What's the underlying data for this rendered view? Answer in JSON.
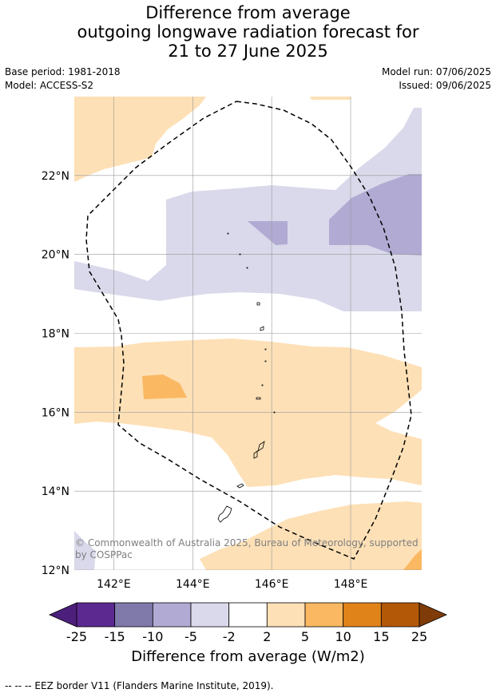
{
  "title": {
    "line1": "Difference from average",
    "line2": "outgoing longwave radiation forecast for",
    "line3": "21 to 27 June 2025"
  },
  "meta": {
    "base_period": "Base period: 1981-2018",
    "model": "Model: ACCESS-S2",
    "model_run": "Model run: 07/06/2025",
    "issued": "Issued: 09/06/2025"
  },
  "map": {
    "lat_ticks": [
      "22°N",
      "20°N",
      "18°N",
      "16°N",
      "14°N",
      "12°N"
    ],
    "lon_ticks": [
      "142°E",
      "144°E",
      "146°E",
      "148°E"
    ],
    "lat_range": [
      12,
      24
    ],
    "lon_range": [
      141,
      149.8
    ],
    "copyright": "© Commonwealth of Australia 2025, Bureau of Meteorology, supported by COSPPac",
    "region_colors": {
      "pos_2_5": "#fde0b6",
      "pos_5_10": "#fbb862",
      "neg_5_2": "#d9d9eb",
      "neg_10_5": "#b1aad3",
      "land_outline": "#000000",
      "eez_border": "#000000",
      "grid": "#999999"
    }
  },
  "colorbar": {
    "ticks": [
      "-25",
      "-15",
      "-10",
      "-5",
      "-2",
      "2",
      "5",
      "10",
      "15",
      "25"
    ],
    "colors": [
      "#4d1f7c",
      "#5b2990",
      "#807aab",
      "#b1aad3",
      "#d9d9eb",
      "#ffffff",
      "#fde0b6",
      "#fbb862",
      "#e0841a",
      "#b35806",
      "#7f3b08"
    ],
    "label": "Difference from average (W/m2)"
  },
  "footnote": "-- -- -- EEZ border V11 (Flanders Marine Institute, 2019)."
}
